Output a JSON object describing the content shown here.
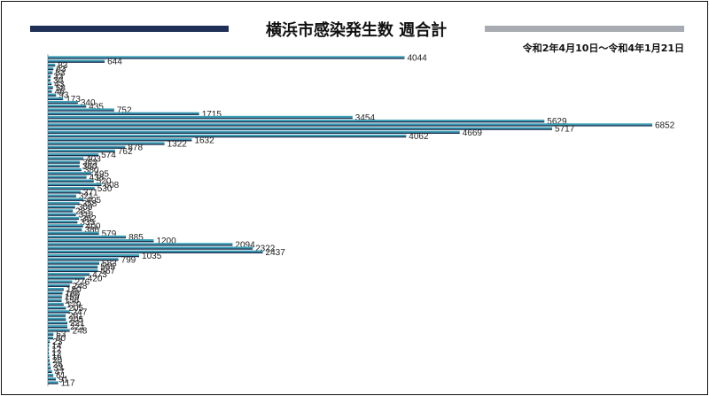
{
  "title": "横浜市感染発生数 週合計",
  "subtitle": "令和2年4月10日～令和4年1月21日",
  "colors": {
    "bar": "#3a9eb5",
    "bar_shadow": "#1b2d4e",
    "accent_left": "#1f2f57",
    "accent_right": "#a8acb2"
  },
  "chart_data": {
    "type": "bar",
    "orientation": "horizontal",
    "title": "横浜市感染発生数 週合計",
    "subtitle": "令和2年4月10日～令和4年1月21日",
    "values": [
      4044,
      644,
      83,
      63,
      53,
      33,
      30,
      43,
      58,
      46,
      93,
      173,
      340,
      435,
      752,
      1715,
      3454,
      5629,
      6852,
      5717,
      4669,
      4062,
      1632,
      1322,
      878,
      762,
      574,
      403,
      363,
      360,
      380,
      495,
      438,
      520,
      608,
      530,
      371,
      321,
      405,
      358,
      309,
      283,
      318,
      352,
      335,
      400,
      386,
      579,
      885,
      1200,
      2094,
      2322,
      2437,
      1035,
      799,
      583,
      565,
      567,
      473,
      420,
      276,
      248,
      180,
      166,
      159,
      156,
      179,
      205,
      247,
      201,
      205,
      221,
      221,
      248,
      63,
      60,
      23,
      14,
      12,
      12,
      16,
      20,
      26,
      33,
      47,
      61,
      91,
      117
    ],
    "xlim": [
      0,
      7200
    ],
    "grid": false,
    "legend": false
  }
}
